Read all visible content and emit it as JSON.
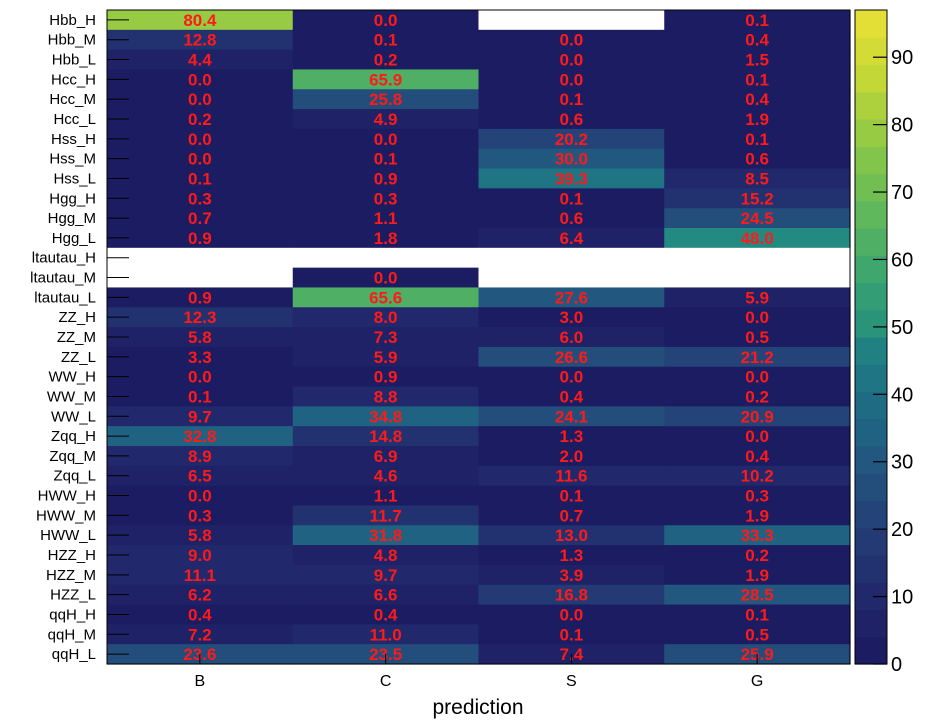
{
  "chart_data": {
    "type": "heatmap",
    "xlabel": "prediction",
    "ylabel": "",
    "title": "",
    "columns": [
      "B",
      "C",
      "S",
      "G"
    ],
    "rows": [
      "Hbb_H",
      "Hbb_M",
      "Hbb_L",
      "Hcc_H",
      "Hcc_M",
      "Hcc_L",
      "Hss_H",
      "Hss_M",
      "Hss_L",
      "Hgg_H",
      "Hgg_M",
      "Hgg_L",
      "Htautau_H",
      "Htautau_M",
      "Htautau_L",
      "ZZ_H",
      "ZZ_M",
      "ZZ_L",
      "WW_H",
      "WW_M",
      "WW_L",
      "Zqq_H",
      "Zqq_M",
      "Zqq_L",
      "HWW_H",
      "HWW_M",
      "HWW_L",
      "HZZ_H",
      "HZZ_M",
      "HZZ_L",
      "qqH_H",
      "qqH_M",
      "qqH_L"
    ],
    "row_labels_display": [
      "Hbb_H",
      "Hbb_M",
      "Hbb_L",
      "Hcc_H",
      "Hcc_M",
      "Hcc_L",
      "Hss_H",
      "Hss_M",
      "Hss_L",
      "Hgg_H",
      "Hgg_M",
      "Hgg_L",
      "ltautau_H",
      "ltautau_M",
      "ltautau_L",
      "ZZ_H",
      "ZZ_M",
      "ZZ_L",
      "WW_H",
      "WW_M",
      "WW_L",
      "Zqq_H",
      "Zqq_M",
      "Zqq_L",
      "HWW_H",
      "HWW_M",
      "HWW_L",
      "HZZ_H",
      "HZZ_M",
      "HZZ_L",
      "qqH_H",
      "qqH_M",
      "qqH_L"
    ],
    "values": [
      [
        80.4,
        0.0,
        null,
        0.1
      ],
      [
        12.8,
        0.1,
        0.0,
        0.4
      ],
      [
        4.4,
        0.2,
        0.0,
        1.5
      ],
      [
        0.0,
        65.9,
        0.0,
        0.1
      ],
      [
        0.0,
        25.8,
        0.1,
        0.4
      ],
      [
        0.2,
        4.9,
        0.6,
        1.9
      ],
      [
        0.0,
        0.0,
        20.2,
        0.1
      ],
      [
        0.0,
        0.1,
        30.0,
        0.6
      ],
      [
        0.1,
        0.9,
        39.3,
        8.5
      ],
      [
        0.3,
        0.3,
        0.1,
        15.2
      ],
      [
        0.7,
        1.1,
        0.6,
        24.5
      ],
      [
        0.9,
        1.8,
        6.4,
        48.0
      ],
      [
        null,
        null,
        null,
        null
      ],
      [
        null,
        0.0,
        null,
        null
      ],
      [
        0.9,
        65.6,
        27.6,
        5.9
      ],
      [
        12.3,
        8.0,
        3.0,
        0.0
      ],
      [
        5.8,
        7.3,
        6.0,
        0.5
      ],
      [
        3.3,
        5.9,
        26.6,
        21.2
      ],
      [
        0.0,
        0.9,
        0.0,
        0.0
      ],
      [
        0.1,
        8.8,
        0.4,
        0.2
      ],
      [
        9.7,
        34.8,
        24.1,
        20.9
      ],
      [
        32.8,
        14.8,
        1.3,
        0.0
      ],
      [
        8.9,
        6.9,
        2.0,
        0.4
      ],
      [
        6.5,
        4.6,
        11.6,
        10.2
      ],
      [
        0.0,
        1.1,
        0.1,
        0.3
      ],
      [
        0.3,
        11.7,
        0.7,
        1.9
      ],
      [
        5.8,
        31.8,
        13.0,
        33.3
      ],
      [
        9.0,
        4.8,
        1.3,
        0.2
      ],
      [
        11.1,
        9.7,
        3.9,
        1.9
      ],
      [
        6.2,
        6.6,
        16.8,
        28.5
      ],
      [
        0.4,
        0.4,
        0.0,
        0.1
      ],
      [
        7.2,
        11.0,
        0.1,
        0.5
      ],
      [
        23.6,
        23.5,
        7.4,
        25.9
      ]
    ],
    "zlim": [
      0,
      97
    ],
    "colorbar_ticks": [
      0,
      10,
      20,
      30,
      40,
      50,
      60,
      70,
      80,
      90
    ],
    "value_text_color": "#ff1a1a",
    "grid": false,
    "legend": "colorbar-right"
  }
}
